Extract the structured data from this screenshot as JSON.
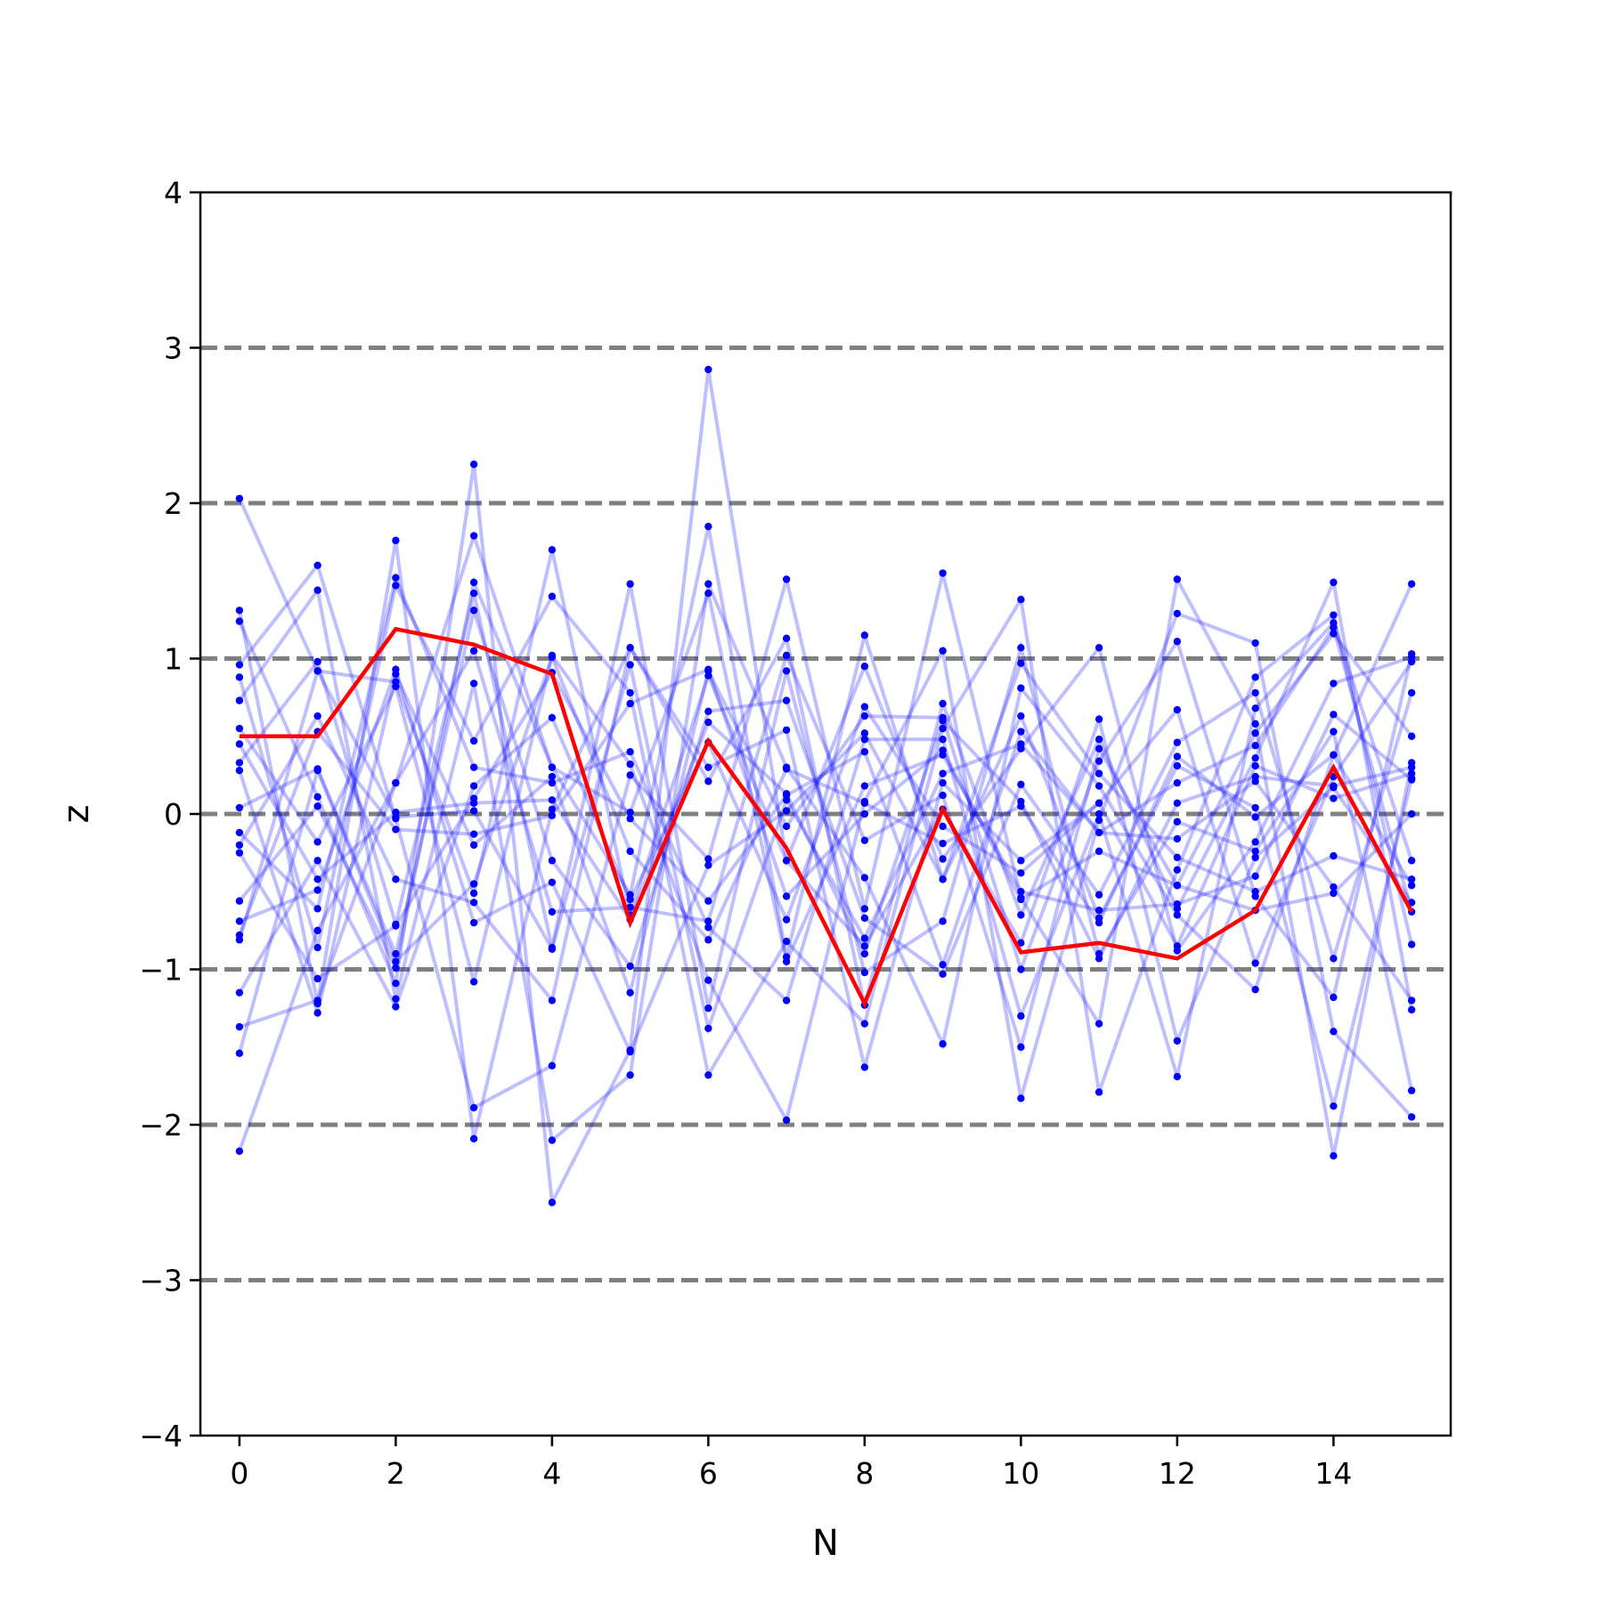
{
  "chart_data": {
    "type": "line",
    "title": "",
    "xlabel": "N",
    "ylabel": "z",
    "xlim": [
      -0.5,
      15.5
    ],
    "ylim": [
      -4,
      4
    ],
    "x": [
      0,
      1,
      2,
      3,
      4,
      5,
      6,
      7,
      8,
      9,
      10,
      11,
      12,
      13,
      14,
      15
    ],
    "xticks": [
      "0",
      "2",
      "4",
      "6",
      "8",
      "10",
      "12",
      "14"
    ],
    "xtick_values": [
      0,
      2,
      4,
      6,
      8,
      10,
      12,
      14
    ],
    "yticks": [
      "−4",
      "−3",
      "−2",
      "−1",
      "0",
      "1",
      "2",
      "3",
      "4"
    ],
    "ytick_values": [
      -4,
      -3,
      -2,
      -1,
      0,
      1,
      2,
      3,
      4
    ],
    "reference_lines": [
      -3,
      -2,
      -1,
      0,
      1,
      2,
      3
    ],
    "colors": {
      "samples": "#0000ff",
      "highlight": "#ff0000",
      "reference": "#808080"
    },
    "grid": false,
    "legend": "none",
    "sample_series": [
      {
        "values": [
          2.03,
          0.92,
          0.85,
          -0.51,
          1.7,
          -0.65,
          0.89,
          -0.3,
          -0.85,
          0.03,
          -0.83,
          0.61,
          -1.46,
          -0.28,
          0.17,
          -0.57
        ]
      },
      {
        "values": [
          -2.17,
          -0.75,
          0.2,
          1.79,
          0.3,
          -0.52,
          1.85,
          -0.92,
          1.15,
          -0.42,
          0.63,
          -0.67,
          0.31,
          0.04,
          -1.88,
          0.23
        ]
      },
      {
        "values": [
          1.31,
          -1.22,
          1.76,
          -2.09,
          0.03,
          1.07,
          0.21,
          1.13,
          -1.23,
          0.71,
          -0.65,
          0.48,
          -0.61,
          0.36,
          1.49,
          -1.26
        ]
      },
      {
        "values": [
          1.24,
          0.11,
          -1.09,
          2.25,
          -2.5,
          -1.52,
          2.86,
          -0.3,
          0.95,
          -0.29,
          0.42,
          1.07,
          -0.88,
          -0.18,
          0.84,
          1.01
        ]
      },
      {
        "values": [
          0.96,
          1.6,
          -0.03,
          -1.89,
          -1.62,
          0.25,
          -0.29,
          1.51,
          -0.61,
          1.55,
          -0.54,
          -1.35,
          1.51,
          0.58,
          -2.2,
          0.33
        ]
      },
      {
        "values": [
          0.88,
          -0.86,
          1.47,
          0.47,
          1.4,
          0.78,
          -1.68,
          -0.82,
          -1.35,
          0.55,
          1.38,
          -1.79,
          -0.36,
          0.88,
          1.28,
          -0.84
        ]
      },
      {
        "values": [
          0.73,
          1.44,
          -1.19,
          0.84,
          -2.1,
          -1.68,
          1.48,
          0.3,
          -0.41,
          -1.48,
          0.81,
          0.18,
          -0.65,
          -1.13,
          0.38,
          1.48
        ]
      },
      {
        "values": [
          0.55,
          -0.18,
          0.82,
          -1.08,
          1.02,
          0.32,
          -1.07,
          -1.97,
          0.08,
          1.05,
          -1.83,
          -0.04,
          1.29,
          1.1,
          -1.4,
          -1.95
        ]
      },
      {
        "values": [
          0.33,
          0.98,
          -0.71,
          1.42,
          -0.86,
          1.48,
          -1.25,
          0.92,
          -1.02,
          -0.69,
          1.07,
          -0.9,
          -0.05,
          -0.24,
          0.53,
          -1.78
        ]
      },
      {
        "values": [
          0.28,
          -1.28,
          0.9,
          -0.2,
          0.24,
          -1.15,
          0.92,
          -0.08,
          0.63,
          0.62,
          -1.0,
          0.34,
          1.11,
          -0.53,
          -1.18,
          1.03
        ]
      },
      {
        "values": [
          0.04,
          0.29,
          -0.9,
          1.31,
          -0.3,
          -0.98,
          0.66,
          0.73,
          -0.67,
          -1.03,
          0.19,
          -0.52,
          0.46,
          0.78,
          -0.93,
          0.78
        ]
      },
      {
        "values": [
          -0.12,
          -0.61,
          1.52,
          0.3,
          0.2,
          0.4,
          -0.73,
          -1.2,
          0.48,
          0.48,
          -1.3,
          0.0,
          -1.69,
          0.68,
          1.23,
          -0.3
        ]
      },
      {
        "values": [
          -0.2,
          0.63,
          -0.42,
          -0.57,
          -1.2,
          1.07,
          0.3,
          0.54,
          -1.63,
          0.2,
          -0.3,
          0.07,
          0.67,
          -0.96,
          0.24,
          0.98
        ]
      },
      {
        "values": [
          -0.25,
          -1.06,
          -0.72,
          0.1,
          0.91,
          -0.03,
          -0.56,
          0.12,
          0.4,
          -0.97,
          0.53,
          -0.12,
          -0.16,
          0.21,
          -0.47,
          -1.2
        ]
      },
      {
        "values": [
          -0.56,
          0.05,
          -0.99,
          1.49,
          0.3,
          0.01,
          1.42,
          -0.95,
          0.18,
          0.38,
          -0.5,
          -0.62,
          -0.58,
          -0.4,
          0.64,
          0.22
        ]
      },
      {
        "values": [
          -0.69,
          -0.49,
          0.93,
          -0.7,
          -0.44,
          -1.53,
          -0.33,
          0.02,
          0.52,
          -0.42,
          0.97,
          0.26,
          -0.28,
          -0.5,
          -0.27,
          -0.42
        ]
      },
      {
        "values": [
          -0.81,
          0.92,
          -0.02,
          0.02,
          -0.87,
          0.96,
          -1.38,
          0.09,
          -0.8,
          0.26,
          0.45,
          -0.12,
          0.2,
          0.44,
          1.2,
          -0.63
        ]
      },
      {
        "values": [
          -1.15,
          -0.3,
          -1.24,
          0.18,
          0.62,
          -0.55,
          0.46,
          -0.68,
          0.69,
          -0.08,
          -0.38,
          0.07,
          -0.85,
          0.31,
          0.1,
          0.26
        ]
      },
      {
        "values": [
          -1.37,
          -1.2,
          0.2,
          1.05,
          -0.63,
          -0.6,
          -0.69,
          1.02,
          -0.17,
          0.12,
          -1.5,
          0.42,
          -0.46,
          -0.62,
          -0.51,
          0.0
        ]
      },
      {
        "values": [
          -1.54,
          0.28,
          -0.95,
          -0.45,
          1.01,
          -0.24,
          -0.81,
          0.29,
          0.07,
          -0.19,
          0.05,
          -0.7,
          0.37,
          -0.02,
          0.38,
          -0.46
        ]
      },
      {
        "values": [
          -0.78,
          0.53,
          -0.1,
          -0.13,
          -0.01,
          0.71,
          0.93,
          -0.53,
          0.0,
          0.41,
          -0.55,
          -0.24,
          -0.46,
          0.52,
          1.16,
          0.5
        ]
      },
      {
        "values": [
          0.45,
          -0.42,
          0.01,
          0.07,
          0.09,
          -0.68,
          0.59,
          0.13,
          -0.9,
          0.6,
          0.08,
          -0.93,
          0.07,
          0.24,
          0.18,
          0.3
        ]
      }
    ],
    "highlight_series": {
      "values": [
        0.5,
        0.5,
        1.19,
        1.09,
        0.9,
        -0.7,
        0.47,
        -0.22,
        -1.22,
        0.03,
        -0.89,
        -0.83,
        -0.93,
        -0.62,
        0.3,
        -0.63
      ]
    }
  }
}
